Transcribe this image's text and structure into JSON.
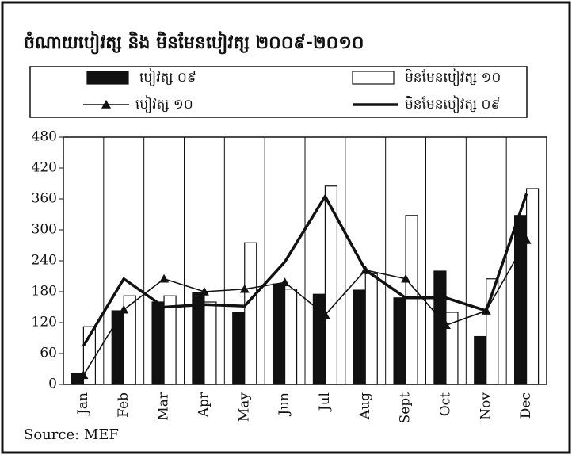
{
  "chart_data": {
    "type": "bar",
    "title": "ចំណាយបៀវត្ស និង មិនមែនបៀវត្ស ២០០៩-២០១០",
    "categories": [
      "Jan",
      "Feb",
      "Mar",
      "Apr",
      "May",
      "Jun",
      "Jul",
      "Aug",
      "Sept",
      "Oct",
      "Nov",
      "Dec"
    ],
    "series": [
      {
        "name": "បៀវត្ស ០៩",
        "type": "bar",
        "color": "#111111",
        "values": [
          22,
          143,
          160,
          178,
          140,
          195,
          175,
          183,
          168,
          220,
          93,
          328
        ]
      },
      {
        "name": "មិនមែនបៀវត្ស ១០",
        "type": "bar",
        "color": "#ffffff",
        "values": [
          112,
          172,
          172,
          160,
          275,
          185,
          385,
          215,
          328,
          140,
          205,
          380
        ]
      },
      {
        "name": "បៀវត្ស ១០",
        "type": "line",
        "marker": "triangle",
        "color": "#111111",
        "values": [
          18,
          145,
          205,
          180,
          185,
          198,
          135,
          222,
          205,
          115,
          143,
          280
        ]
      },
      {
        "name": "មិនមែនបៀវត្ស ០៩",
        "type": "line",
        "color": "#111111",
        "values": [
          75,
          205,
          150,
          155,
          152,
          238,
          365,
          222,
          168,
          168,
          143,
          370
        ]
      }
    ],
    "ylim": [
      0,
      480
    ],
    "yticks": [
      0,
      60,
      120,
      180,
      240,
      300,
      360,
      420,
      480
    ],
    "legend": "top",
    "source": "Source: MEF"
  }
}
